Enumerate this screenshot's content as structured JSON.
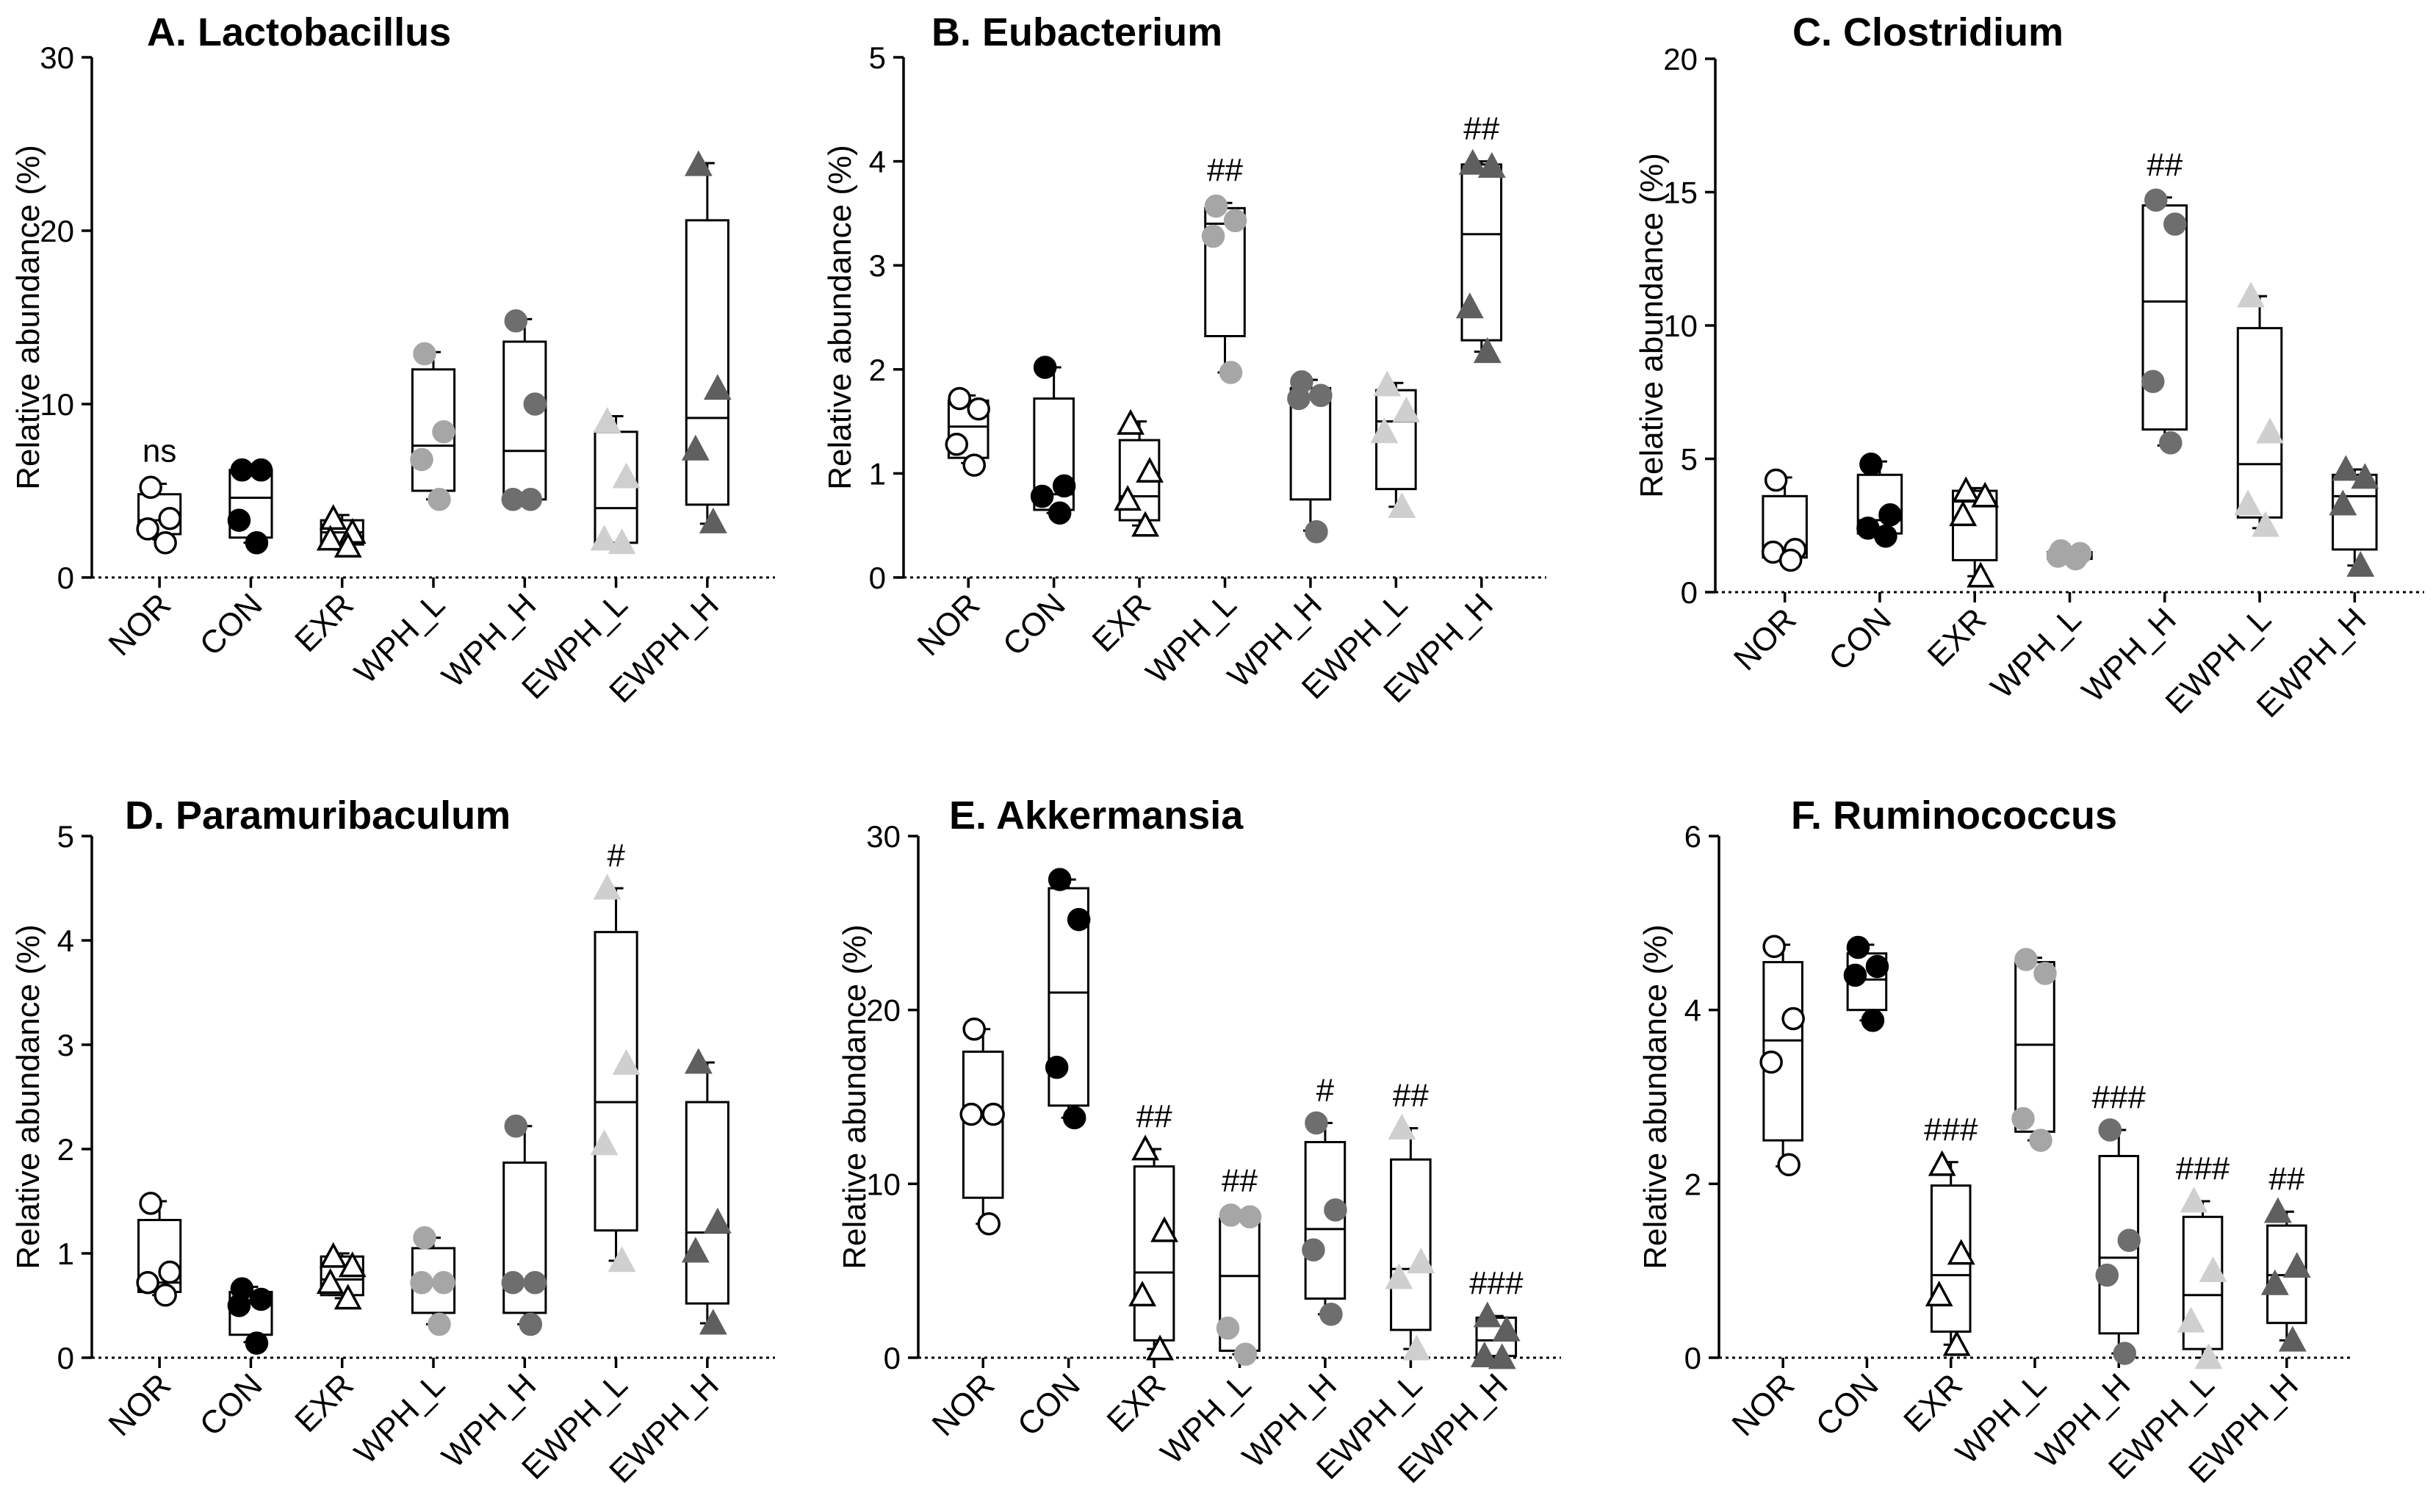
{
  "chart_data": [
    {
      "type": "box",
      "title": "A. Lactobacillus",
      "ylabel": "Relative abundance (%)",
      "ylim": [
        0,
        30
      ],
      "yticks": [
        0,
        10,
        20,
        30
      ],
      "categories": [
        "NOR",
        "CON",
        "EXR",
        "WPH_L",
        "WPH_H",
        "EWPH_L",
        "EWPH_H"
      ],
      "boxes": [
        {
          "min": 2.2,
          "q1": 2.5,
          "median": 3.3,
          "q3": 4.8,
          "max": 5.4,
          "points": [
            5.2,
            3.4,
            2.8,
            2.0
          ]
        },
        {
          "min": 2.0,
          "q1": 2.3,
          "median": 4.6,
          "q3": 6.2,
          "max": 6.5,
          "points": [
            6.2,
            6.2,
            3.3,
            2.0
          ]
        },
        {
          "min": 1.6,
          "q1": 1.9,
          "median": 2.6,
          "q3": 3.3,
          "max": 3.6,
          "points": [
            3.4,
            2.6,
            2.2,
            1.8
          ]
        },
        {
          "min": 4.5,
          "q1": 5.0,
          "median": 7.6,
          "q3": 12.0,
          "max": 13.0,
          "points": [
            12.9,
            8.4,
            6.8,
            4.5
          ]
        },
        {
          "min": 4.5,
          "q1": 4.5,
          "median": 7.3,
          "q3": 13.6,
          "max": 14.9,
          "points": [
            14.8,
            10.0,
            4.5,
            4.5
          ]
        },
        {
          "min": 1.9,
          "q1": 2.0,
          "median": 4.0,
          "q3": 8.4,
          "max": 9.3,
          "points": [
            9.0,
            5.8,
            2.2,
            2.0
          ]
        },
        {
          "min": 3.1,
          "q1": 4.2,
          "median": 9.2,
          "q3": 20.6,
          "max": 23.9,
          "points": [
            23.8,
            10.9,
            7.4,
            3.2
          ]
        }
      ],
      "annotations": [
        "ns",
        "",
        "",
        "",
        "",
        "",
        ""
      ]
    },
    {
      "type": "box",
      "title": "B. Eubacterium",
      "ylabel": "Relative abundance (%)",
      "ylim": [
        0,
        5
      ],
      "yticks": [
        0,
        1,
        2,
        3,
        4,
        5
      ],
      "categories": [
        "NOR",
        "CON",
        "EXR",
        "WPH_L",
        "WPH_H",
        "EWPH_L",
        "EWPH_H"
      ],
      "boxes": [
        {
          "min": 1.1,
          "q1": 1.15,
          "median": 1.45,
          "q3": 1.7,
          "max": 1.75,
          "points": [
            1.72,
            1.62,
            1.28,
            1.08
          ]
        },
        {
          "min": 0.62,
          "q1": 0.65,
          "median": 0.8,
          "q3": 1.72,
          "max": 2.02,
          "points": [
            2.02,
            0.88,
            0.78,
            0.62
          ]
        },
        {
          "min": 0.5,
          "q1": 0.55,
          "median": 0.78,
          "q3": 1.32,
          "max": 1.5,
          "points": [
            1.48,
            1.02,
            0.75,
            0.5
          ]
        },
        {
          "min": 1.97,
          "q1": 2.32,
          "median": 3.4,
          "q3": 3.55,
          "max": 3.6,
          "points": [
            3.57,
            3.43,
            3.28,
            1.97
          ]
        },
        {
          "min": 0.45,
          "q1": 0.75,
          "median": 1.72,
          "q3": 1.82,
          "max": 1.9,
          "points": [
            1.88,
            1.75,
            1.72,
            0.44
          ]
        },
        {
          "min": 0.68,
          "q1": 0.85,
          "median": 1.5,
          "q3": 1.8,
          "max": 1.87,
          "points": [
            1.85,
            1.6,
            1.4,
            0.68
          ]
        },
        {
          "min": 2.17,
          "q1": 2.28,
          "median": 3.3,
          "q3": 3.97,
          "max": 4.0,
          "points": [
            3.98,
            3.95,
            2.6,
            2.17
          ]
        }
      ],
      "annotations": [
        "",
        "",
        "",
        "##",
        "",
        "",
        "##"
      ]
    },
    {
      "type": "box",
      "title": "C. Clostridium",
      "ylabel": "Relative abundance (%)",
      "ylim": [
        0,
        20
      ],
      "yticks": [
        0,
        5,
        10,
        15,
        20
      ],
      "categories": [
        "NOR",
        "CON",
        "EXR",
        "WPH_L",
        "WPH_H",
        "EWPH_L",
        "EWPH_H"
      ],
      "boxes": [
        {
          "min": 1.2,
          "q1": 1.3,
          "median": 1.6,
          "q3": 3.6,
          "max": 4.3,
          "points": [
            4.2,
            1.6,
            1.5,
            1.2
          ]
        },
        {
          "min": 2.1,
          "q1": 2.2,
          "median": 2.7,
          "q3": 4.4,
          "max": 4.9,
          "points": [
            4.8,
            2.9,
            2.4,
            2.1
          ]
        },
        {
          "min": 0.6,
          "q1": 1.2,
          "median": 3.4,
          "q3": 3.8,
          "max": 3.9,
          "points": [
            3.8,
            3.6,
            2.9,
            0.6
          ]
        },
        {
          "min": 1.2,
          "q1": 1.25,
          "median": 1.35,
          "q3": 1.5,
          "max": 1.6,
          "points": [
            1.55,
            1.45,
            1.35,
            1.25
          ]
        },
        {
          "min": 5.5,
          "q1": 6.1,
          "median": 10.9,
          "q3": 14.5,
          "max": 14.8,
          "points": [
            14.7,
            13.8,
            7.9,
            5.6
          ]
        },
        {
          "min": 2.4,
          "q1": 2.8,
          "median": 4.8,
          "q3": 9.9,
          "max": 11.1,
          "points": [
            11.1,
            6.0,
            3.3,
            2.5
          ]
        },
        {
          "min": 1.0,
          "q1": 1.6,
          "median": 3.6,
          "q3": 4.4,
          "max": 4.6,
          "points": [
            4.6,
            4.3,
            3.3,
            1.0
          ]
        }
      ],
      "annotations": [
        "",
        "",
        "",
        "",
        "##",
        "",
        ""
      ]
    },
    {
      "type": "box",
      "title": "D. Paramuribaculum",
      "ylabel": "Relative abundance (%)",
      "ylim": [
        0,
        5
      ],
      "yticks": [
        0,
        1,
        2,
        3,
        4,
        5
      ],
      "categories": [
        "NOR",
        "CON",
        "EXR",
        "WPH_L",
        "WPH_H",
        "EWPH_L",
        "EWPH_H"
      ],
      "boxes": [
        {
          "min": 0.6,
          "q1": 0.63,
          "median": 0.72,
          "q3": 1.32,
          "max": 1.5,
          "points": [
            1.48,
            0.82,
            0.72,
            0.6
          ]
        },
        {
          "min": 0.15,
          "q1": 0.22,
          "median": 0.55,
          "q3": 0.63,
          "max": 0.68,
          "points": [
            0.66,
            0.56,
            0.5,
            0.14
          ]
        },
        {
          "min": 0.57,
          "q1": 0.6,
          "median": 0.75,
          "q3": 0.97,
          "max": 1.0,
          "points": [
            0.97,
            0.88,
            0.72,
            0.57
          ]
        },
        {
          "min": 0.32,
          "q1": 0.43,
          "median": 0.72,
          "q3": 1.05,
          "max": 1.15,
          "points": [
            1.15,
            0.72,
            0.72,
            0.32
          ]
        },
        {
          "min": 0.32,
          "q1": 0.43,
          "median": 0.72,
          "q3": 1.87,
          "max": 2.22,
          "points": [
            2.22,
            0.72,
            0.72,
            0.32
          ]
        },
        {
          "min": 0.93,
          "q1": 1.22,
          "median": 2.45,
          "q3": 4.08,
          "max": 4.5,
          "points": [
            4.5,
            2.82,
            2.05,
            0.93
          ]
        },
        {
          "min": 0.33,
          "q1": 0.52,
          "median": 1.2,
          "q3": 2.45,
          "max": 2.83,
          "points": [
            2.83,
            1.3,
            1.02,
            0.33
          ]
        }
      ],
      "annotations": [
        "",
        "",
        "",
        "",
        "",
        "#",
        ""
      ]
    },
    {
      "type": "box",
      "title": "E. Akkermansia",
      "ylabel": "Relative abundance (%)",
      "ylim": [
        0,
        30
      ],
      "yticks": [
        0,
        10,
        20,
        30
      ],
      "categories": [
        "NOR",
        "CON",
        "EXR",
        "WPH_L",
        "WPH_H",
        "EWPH_L",
        "EWPH_H"
      ],
      "boxes": [
        {
          "min": 7.7,
          "q1": 9.2,
          "median": 14.0,
          "q3": 17.6,
          "max": 18.9,
          "points": [
            18.9,
            14.0,
            14.0,
            7.7
          ]
        },
        {
          "min": 13.8,
          "q1": 14.5,
          "median": 21.0,
          "q3": 27.0,
          "max": 27.5,
          "points": [
            27.5,
            25.2,
            16.7,
            13.8
          ]
        },
        {
          "min": 0.5,
          "q1": 1.0,
          "median": 4.9,
          "q3": 11.0,
          "max": 12.0,
          "points": [
            12.0,
            7.3,
            3.6,
            0.5
          ]
        },
        {
          "min": 0.2,
          "q1": 0.4,
          "median": 4.7,
          "q3": 8.0,
          "max": 8.3,
          "points": [
            8.2,
            8.1,
            1.7,
            0.2
          ]
        },
        {
          "min": 2.5,
          "q1": 3.4,
          "median": 7.4,
          "q3": 12.4,
          "max": 13.5,
          "points": [
            13.5,
            8.5,
            6.2,
            2.5
          ]
        },
        {
          "min": 0.5,
          "q1": 1.6,
          "median": 5.1,
          "q3": 11.4,
          "max": 13.2,
          "points": [
            13.2,
            5.5,
            4.6,
            0.5
          ]
        },
        {
          "min": 0.0,
          "q1": 0.1,
          "median": 1.0,
          "q3": 2.3,
          "max": 2.4,
          "points": [
            2.4,
            1.6,
            0.1,
            0.0
          ]
        }
      ],
      "annotations": [
        "",
        "",
        "##",
        "##",
        "#",
        "##",
        "###"
      ]
    },
    {
      "type": "box",
      "title": "F. Ruminococcus",
      "ylabel": "Relative abundance (%)",
      "ylim": [
        0,
        6
      ],
      "yticks": [
        0,
        2,
        4,
        6
      ],
      "categories": [
        "NOR",
        "CON",
        "EXR",
        "WPH_L",
        "WPH_H",
        "EWPH_L",
        "EWPH_H"
      ],
      "boxes": [
        {
          "min": 2.2,
          "q1": 2.5,
          "median": 3.65,
          "q3": 4.55,
          "max": 4.75,
          "points": [
            4.73,
            3.9,
            3.4,
            2.22
          ]
        },
        {
          "min": 3.88,
          "q1": 4.0,
          "median": 4.35,
          "q3": 4.65,
          "max": 4.75,
          "points": [
            4.72,
            4.5,
            4.4,
            3.88
          ]
        },
        {
          "min": 0.15,
          "q1": 0.3,
          "median": 0.95,
          "q3": 1.98,
          "max": 2.25,
          "points": [
            2.22,
            1.2,
            0.72,
            0.15
          ]
        },
        {
          "min": 2.5,
          "q1": 2.6,
          "median": 3.6,
          "q3": 4.55,
          "max": 4.6,
          "points": [
            4.58,
            4.42,
            2.75,
            2.5
          ]
        },
        {
          "min": 0.05,
          "q1": 0.28,
          "median": 1.15,
          "q3": 2.32,
          "max": 2.62,
          "points": [
            2.62,
            1.35,
            0.95,
            0.05
          ]
        },
        {
          "min": 0.0,
          "q1": 0.1,
          "median": 0.72,
          "q3": 1.62,
          "max": 1.8,
          "points": [
            1.8,
            1.0,
            0.42,
            0.0
          ]
        },
        {
          "min": 0.2,
          "q1": 0.4,
          "median": 0.95,
          "q3": 1.52,
          "max": 1.68,
          "points": [
            1.68,
            1.05,
            0.85,
            0.2
          ]
        }
      ],
      "annotations": [
        "",
        "",
        "###",
        "",
        "###",
        "###",
        "##"
      ]
    }
  ],
  "groups": {
    "NOR": {
      "color": "#ffffff",
      "stroke": "#000000",
      "marker": "circle"
    },
    "CON": {
      "color": "#000000",
      "stroke": "#000000",
      "marker": "circle"
    },
    "EXR": {
      "color": "#ffffff",
      "stroke": "#000000",
      "marker": "triangle"
    },
    "WPH_L": {
      "color": "#a6a6a6",
      "stroke": "#a6a6a6",
      "marker": "circle"
    },
    "WPH_H": {
      "color": "#6e6e6e",
      "stroke": "#6e6e6e",
      "marker": "circle"
    },
    "EWPH_L": {
      "color": "#cfcfcf",
      "stroke": "#cfcfcf",
      "marker": "triangle"
    },
    "EWPH_H": {
      "color": "#5f5f5f",
      "stroke": "#5f5f5f",
      "marker": "triangle"
    }
  }
}
